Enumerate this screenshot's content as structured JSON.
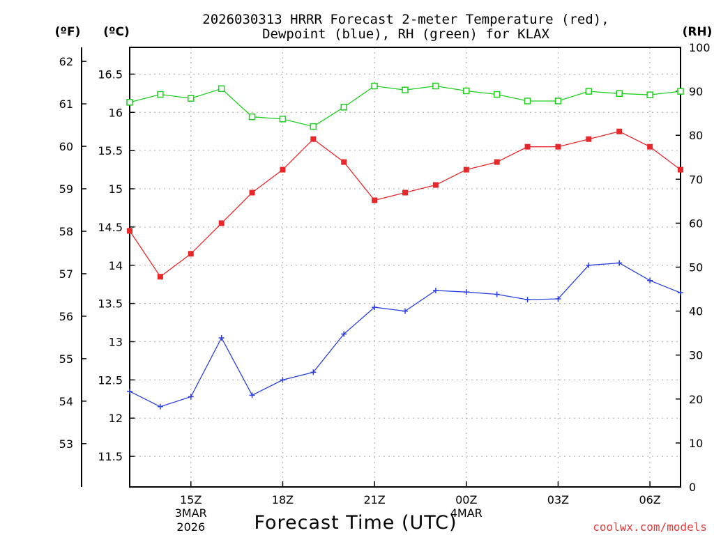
{
  "chart_data": {
    "type": "line",
    "title_line1": "2026030313 HRRR Forecast 2-meter Temperature (red),",
    "title_line2": "Dewpoint (blue), RH (green) for KLAX",
    "xlabel": "Forecast Time (UTC)",
    "credit": "coolwx.com/models",
    "units": {
      "f": "(ºF)",
      "c": "(ºC)",
      "rh": "(RH)"
    },
    "colors": {
      "temperature": "#e8272b",
      "dewpoint": "#2a3fe0",
      "rh": "#1ecf1e",
      "credit": "#e23c3c",
      "grid": "#b8b8b8"
    },
    "x_hours": [
      13,
      14,
      15,
      16,
      17,
      18,
      19,
      20,
      21,
      22,
      23,
      24,
      25,
      26,
      27,
      28,
      29,
      30,
      31
    ],
    "x_ticks": [
      {
        "hour": 15,
        "label": "15Z",
        "sub1": "3MAR",
        "sub2": "2026"
      },
      {
        "hour": 18,
        "label": "18Z",
        "sub1": "",
        "sub2": ""
      },
      {
        "hour": 21,
        "label": "21Z",
        "sub1": "",
        "sub2": ""
      },
      {
        "hour": 24,
        "label": "00Z",
        "sub1": "4MAR",
        "sub2": ""
      },
      {
        "hour": 27,
        "label": "03Z",
        "sub1": "",
        "sub2": ""
      },
      {
        "hour": 30,
        "label": "06Z",
        "sub1": "",
        "sub2": ""
      }
    ],
    "y_c_range": [
      11.1,
      16.85
    ],
    "y_c_ticks": [
      "11.5",
      "12",
      "12.5",
      "13",
      "13.5",
      "14",
      "14.5",
      "15",
      "15.5",
      "16",
      "16.5"
    ],
    "y_f_ticks": [
      "53",
      "54",
      "55",
      "56",
      "57",
      "58",
      "59",
      "60",
      "61",
      "62"
    ],
    "y_rh_range": [
      0,
      100
    ],
    "y_rh_ticks": [
      "0",
      "10",
      "20",
      "30",
      "40",
      "50",
      "60",
      "70",
      "80",
      "90",
      "100"
    ],
    "series": [
      {
        "name": "Temperature",
        "unit": "C",
        "marker": "filled-square",
        "values": [
          14.45,
          13.85,
          14.15,
          14.55,
          14.95,
          15.25,
          15.65,
          15.35,
          14.85,
          14.95,
          15.05,
          15.25,
          15.35,
          15.55,
          15.55,
          15.65,
          15.75,
          15.55,
          15.25
        ]
      },
      {
        "name": "Dewpoint",
        "unit": "C",
        "marker": "plus",
        "values": [
          12.35,
          12.15,
          12.28,
          13.05,
          12.3,
          12.5,
          12.6,
          13.1,
          13.45,
          13.4,
          13.67,
          13.65,
          13.62,
          13.55,
          13.56,
          14.0,
          14.03,
          13.8,
          13.64
        ]
      },
      {
        "name": "RH",
        "unit": "%",
        "marker": "open-square",
        "values": [
          87.5,
          89.3,
          88.4,
          90.6,
          84.2,
          83.7,
          82.0,
          86.4,
          91.2,
          90.3,
          91.2,
          90.1,
          89.3,
          87.8,
          87.8,
          90.0,
          89.5,
          89.2,
          90.0
        ]
      }
    ]
  }
}
